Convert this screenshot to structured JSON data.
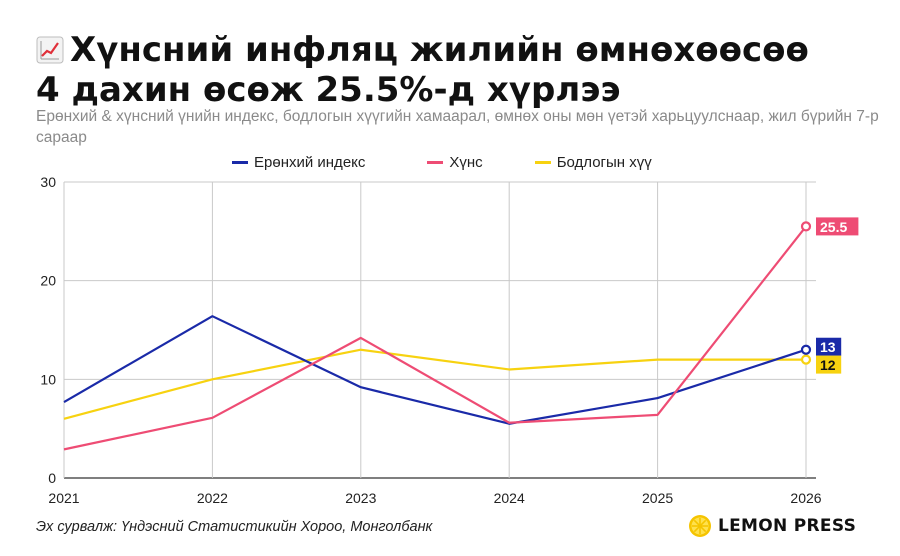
{
  "title_lines": [
    "Хүнсний инфляц жилийн өмнөхөөсөө",
    "4 дахин өсөж 25.5%-д хүрлээ"
  ],
  "subtitle": "Ерөнхий & хүнсний үнийн индекс, бодлогын хүүгийн хамаарал, өмнөх оны мөн үетэй харьцуулснаар, жил бүрийн 7-р сараар",
  "title_icon": "chart-increasing-icon",
  "source": "Эх сурвалж: Үндэсний Статистикийн Хороо, Монголбанк",
  "brand": "LEMON PRESS",
  "brand_icon": "lemon-slice-icon",
  "colors": {
    "general": "#1a2aa8",
    "food": "#ee4c74",
    "policy": "#f7d210",
    "grid": "#c9c9c9",
    "axis": "#333333"
  },
  "chart_data": {
    "type": "line",
    "title": "Хүнсний инфляц жилийн өмнөхөөсөө 4 дахин өсөж 25.5%-д хүрлээ",
    "x": [
      "2021",
      "2022",
      "2023",
      "2024",
      "2025",
      "2026"
    ],
    "ylim": [
      0,
      30
    ],
    "yticks": [
      "0",
      "10",
      "20",
      "30"
    ],
    "grid": true,
    "legend_position": "top",
    "series": [
      {
        "name": "Ерөнхий индекс",
        "values": [
          7.7,
          16.4,
          9.2,
          5.5,
          8.1,
          13
        ],
        "color": "#1a2aa8",
        "end_label": "13"
      },
      {
        "name": "Хүнс",
        "values": [
          2.9,
          6.1,
          14.2,
          5.6,
          6.4,
          25.5
        ],
        "color": "#ee4c74",
        "end_label": "25.5"
      },
      {
        "name": "Бодлогын хүү",
        "values": [
          6.0,
          10.0,
          13.0,
          11.0,
          12.0,
          12.0
        ],
        "color": "#f7d210",
        "end_label": "12"
      }
    ]
  }
}
